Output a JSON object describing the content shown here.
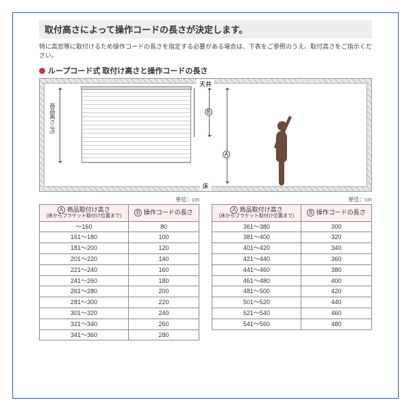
{
  "title": "取付高さによって操作コードの長さが決定します。",
  "subtitle": "特に高窓等に取付けるため操作コードの長さを指定する必要がある場合は、下表をご参照のうえ、取付高さをご指示ください。",
  "section_head": "ループコード式 取付け高さと操作コードの長さ",
  "diagram": {
    "ceiling": "天井",
    "floor": "床",
    "height_label": "商品高さ (H)",
    "marker_a": "A",
    "marker_b": "B"
  },
  "unit_label": "単位：cm",
  "headers": {
    "colA_main": "商品取付け高さ",
    "colA_sub": "(床からブラケット取付け位置まで)",
    "colA_marker": "A",
    "colB_main": "操作コードの長さ",
    "colB_marker": "B"
  },
  "table_left": [
    [
      "～160",
      "80"
    ],
    [
      "161～180",
      "100"
    ],
    [
      "181～200",
      "120"
    ],
    [
      "201～220",
      "140"
    ],
    [
      "221～240",
      "160"
    ],
    [
      "241～260",
      "180"
    ],
    [
      "261～280",
      "200"
    ],
    [
      "281～300",
      "220"
    ],
    [
      "301～320",
      "240"
    ],
    [
      "321～340",
      "260"
    ],
    [
      "341～360",
      "280"
    ]
  ],
  "table_right": [
    [
      "361～380",
      "300"
    ],
    [
      "381～400",
      "320"
    ],
    [
      "401～420",
      "340"
    ],
    [
      "421～440",
      "360"
    ],
    [
      "441～460",
      "380"
    ],
    [
      "461～480",
      "400"
    ],
    [
      "481～500",
      "420"
    ],
    [
      "501～520",
      "440"
    ],
    [
      "521～540",
      "460"
    ],
    [
      "541～560",
      "480"
    ]
  ],
  "colors": {
    "border": "#2a5a9a",
    "title_bg": "#eeeeee",
    "dot": "#c73a3a",
    "th_bg": "#fdeef0",
    "table_border": "#888888",
    "hatch_dark": "#bbbbbb",
    "hatch_light": "#e8e8e8"
  }
}
